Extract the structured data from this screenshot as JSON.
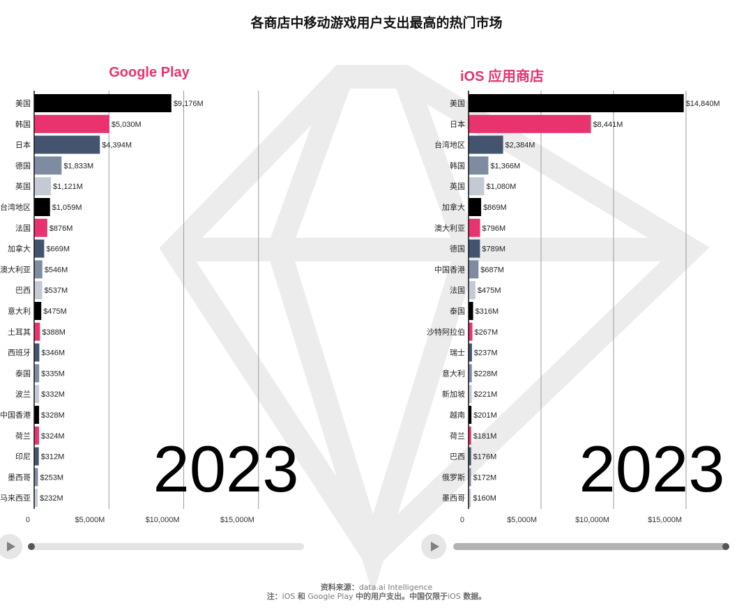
{
  "title": "各商店中移动游戏用户支出最高的热门市场",
  "colors": {
    "accent": "#e8336e",
    "palette": [
      "#000000",
      "#e8336e",
      "#44546f",
      "#7f8ba0",
      "#c4c9d4"
    ]
  },
  "footer": {
    "source_label": "资料来源：",
    "source_value": "data.ai Intelligence",
    "note_label": "注：",
    "note_text_1": "iOS",
    "note_text_2": "和",
    "note_text_3": "Google Play",
    "note_text_4": "中的用户支出。中国仅限于",
    "note_text_5": "iOS",
    "note_text_6": "数据。"
  },
  "chart_data": [
    {
      "type": "bar",
      "orientation": "horizontal",
      "title": "Google Play",
      "year": "2023",
      "categories": [
        "美国",
        "韩国",
        "日本",
        "德国",
        "英国",
        "台湾地区",
        "法国",
        "加拿大",
        "澳大利亚",
        "巴西",
        "意大利",
        "土耳其",
        "西班牙",
        "泰国",
        "波兰",
        "中国香港",
        "荷兰",
        "印尼",
        "墨西哥",
        "马来西亚"
      ],
      "values": [
        9176,
        5030,
        4394,
        1833,
        1121,
        1059,
        876,
        669,
        546,
        537,
        475,
        388,
        346,
        335,
        332,
        328,
        324,
        312,
        253,
        232
      ],
      "value_labels": [
        "$9,176M",
        "$5,030M",
        "$4,394M",
        "$1,833M",
        "$1,121M",
        "$1,059M",
        "$876M",
        "$669M",
        "$546M",
        "$537M",
        "$475M",
        "$388M",
        "$346M",
        "$335M",
        "$332M",
        "$328M",
        "$324M",
        "$312M",
        "$253M",
        "$232M"
      ],
      "xticks": [
        0,
        5000,
        10000,
        15000
      ],
      "xtick_labels": [
        "0",
        "$5,000M",
        "$10,000M",
        "$15,000M"
      ],
      "xlim": [
        0,
        15000
      ],
      "grid": true,
      "progress": 0
    },
    {
      "type": "bar",
      "orientation": "horizontal",
      "title": "iOS 应用商店",
      "year": "2023",
      "categories": [
        "美国",
        "日本",
        "台湾地区",
        "韩国",
        "英国",
        "加拿大",
        "澳大利亚",
        "德国",
        "中国香港",
        "法国",
        "泰国",
        "沙特阿拉伯",
        "瑞士",
        "意大利",
        "新加坡",
        "越南",
        "荷兰",
        "巴西",
        "俄罗斯",
        "墨西哥"
      ],
      "values": [
        14840,
        8441,
        2384,
        1366,
        1080,
        869,
        796,
        789,
        687,
        475,
        316,
        267,
        237,
        228,
        221,
        201,
        181,
        176,
        172,
        160
      ],
      "value_labels": [
        "$14,840M",
        "$8,441M",
        "$2,384M",
        "$1,366M",
        "$1,080M",
        "$869M",
        "$796M",
        "$789M",
        "$687M",
        "$475M",
        "$316M",
        "$267M",
        "$237M",
        "$228M",
        "$221M",
        "$201M",
        "$181M",
        "$176M",
        "$172M",
        "$160M"
      ],
      "xticks": [
        0,
        5000,
        10000,
        15000
      ],
      "xtick_labels": [
        "0",
        "$5,000M",
        "$10,000M",
        "$15,000M"
      ],
      "xlim": [
        0,
        15000
      ],
      "grid": true,
      "progress": 1
    }
  ]
}
